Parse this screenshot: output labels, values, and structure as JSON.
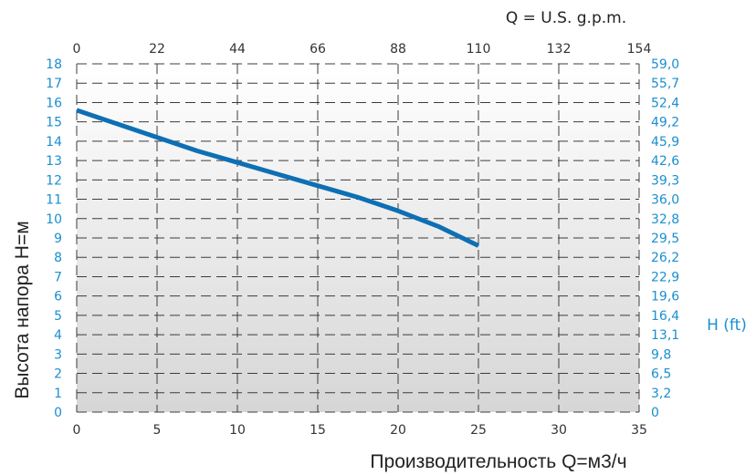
{
  "chart_data": {
    "type": "line",
    "xlabel": "Производительность Q=м3/ч",
    "ylabel": "Высота напора  H=м",
    "x2label": "Q = U.S. g.p.m.",
    "y2label": "H (ft)",
    "xlim": [
      0,
      35
    ],
    "ylim": [
      0,
      18
    ],
    "x_ticks": [
      "0",
      "5",
      "10",
      "15",
      "20",
      "25",
      "30",
      "35"
    ],
    "y_ticks": [
      "0",
      "1",
      "2",
      "3",
      "4",
      "5",
      "6",
      "7",
      "8",
      "9",
      "10",
      "11",
      "12",
      "13",
      "14",
      "15",
      "16",
      "17",
      "18"
    ],
    "x2_ticks": [
      "0",
      "22",
      "44",
      "66",
      "88",
      "110",
      "132",
      "154"
    ],
    "y2_ticks": [
      "0",
      "3,2",
      "6,5",
      "9,8",
      "13,1",
      "16,4",
      "19,6",
      "22,9",
      "26,2",
      "29,5",
      "32,8",
      "36,0",
      "39,3",
      "42,6",
      "45,9",
      "49,2",
      "52,4",
      "55,7",
      "59,0"
    ],
    "grid": true,
    "line_color": "#0e6fb4",
    "series": [
      {
        "x": [
          0,
          2.5,
          5,
          7.5,
          10,
          12.5,
          15,
          17.5,
          20,
          22.5,
          25
        ],
        "y": [
          15.6,
          14.9,
          14.2,
          13.5,
          12.9,
          12.3,
          11.7,
          11.1,
          10.4,
          9.6,
          8.6
        ]
      }
    ]
  }
}
